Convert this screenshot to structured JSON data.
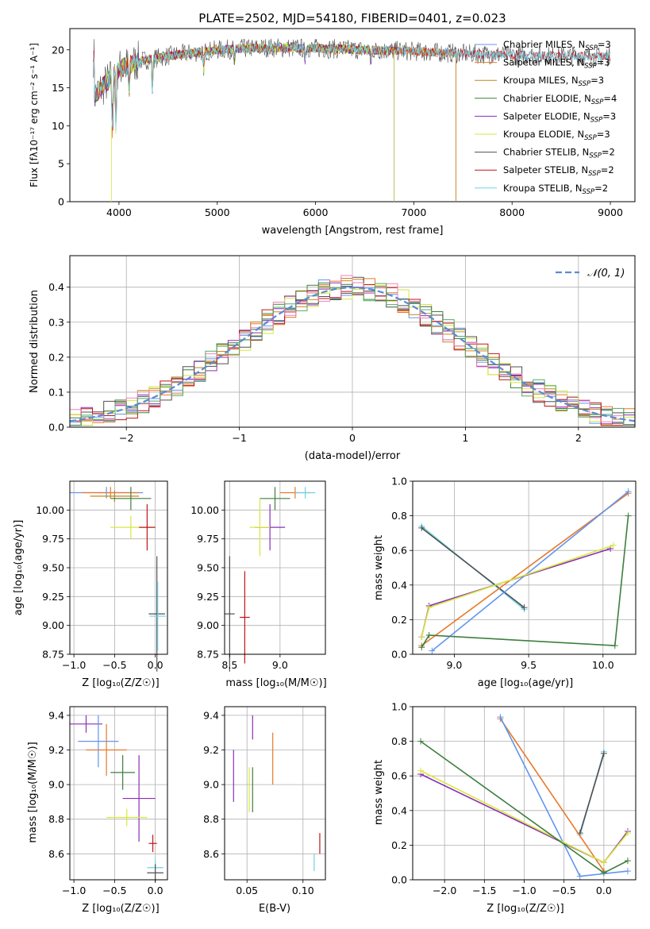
{
  "title": "PLATE=2502, MJD=54180, FIBERID=0401, z=0.023",
  "series_colors": [
    "#6495ed",
    "#e8792a",
    "#c2851f",
    "#3e7e3e",
    "#8a2fb8",
    "#d6e83c",
    "#505050",
    "#c0161a",
    "#6fd3e6"
  ],
  "hist_colors": [
    "#6495ed",
    "#e8792a",
    "#c2851f",
    "#3e7e3e",
    "#8a2fb8",
    "#d6e83c",
    "#505050",
    "#c0161a",
    "#ee82b8",
    "#55aa66"
  ],
  "spectrum": {
    "xlabel": "wavelength [Angstrom, rest frame]",
    "ylabel": "Flux [fλ10⁻¹⁷ erg cm⁻² s⁻¹ A⁻¹]",
    "xticks": [
      "4000",
      "5000",
      "6000",
      "7000",
      "8000",
      "9000"
    ],
    "yticks": [
      "0",
      "5",
      "10",
      "15",
      "20"
    ],
    "legend": [
      "Chabrier MILES, N_SSP=3",
      "Salpeter MILES, N_SSP=3",
      "Kroupa MILES, N_SSP=3",
      "Chabrier ELODIE, N_SSP=4",
      "Salpeter ELODIE, N_SSP=3",
      "Kroupa ELODIE, N_SSP=3",
      "Chabrier STELIB, N_SSP=2",
      "Salpeter STELIB, N_SSP=2",
      "Kroupa STELIB, N_SSP=2"
    ]
  },
  "histogram": {
    "xlabel": "(data-model)/error",
    "ylabel": "Normed distribution",
    "xticks": [
      "−2",
      "−1",
      "0",
      "1",
      "2"
    ],
    "yticks": [
      "0.0",
      "0.1",
      "0.2",
      "0.3",
      "0.4"
    ],
    "legend": "𝒩(0, 1)"
  },
  "panels": {
    "age_vs_Z": {
      "xlabel": "Z [log₁₀(Z/Z☉)]",
      "ylabel": "age  [log₁₀(age/yr)]",
      "xticks": [
        "−1.0",
        "−0.5",
        "0.0"
      ],
      "yticks": [
        "8.75",
        "9.00",
        "9.25",
        "9.50",
        "9.75",
        "10.00"
      ]
    },
    "age_vs_mass": {
      "xlabel": "mass [log₁₀(M/M☉)]",
      "xticks": [
        "8.5",
        "9.0"
      ],
      "yticks": [
        "8.75",
        "9.00",
        "9.25",
        "9.50",
        "9.75",
        "10.00"
      ]
    },
    "weight_vs_age": {
      "xlabel": "age  [log₁₀(age/yr)]",
      "ylabel": "mass weight",
      "xticks": [
        "9.0",
        "9.5",
        "10.0"
      ],
      "yticks": [
        "0.0",
        "0.2",
        "0.4",
        "0.6",
        "0.8",
        "1.0"
      ]
    },
    "mass_vs_Z": {
      "xlabel": "Z [log₁₀(Z/Z☉)]",
      "ylabel": "mass [log₁₀(M/M☉)]",
      "xticks": [
        "−1.0",
        "−0.5",
        "0.0"
      ],
      "yticks": [
        "8.6",
        "8.8",
        "9.0",
        "9.2",
        "9.4"
      ]
    },
    "mass_vs_ebv": {
      "xlabel": "E(B-V)",
      "xticks": [
        "0.05",
        "0.10"
      ],
      "yticks": [
        "8.6",
        "8.8",
        "9.0",
        "9.2",
        "9.4"
      ]
    },
    "weight_vs_Z": {
      "xlabel": "Z [log₁₀(Z/Z☉)]",
      "ylabel": "mass weight",
      "xticks": [
        "−2.0",
        "−1.5",
        "−1.0",
        "−0.5",
        "0.0"
      ],
      "yticks": [
        "0.0",
        "0.2",
        "0.4",
        "0.6",
        "0.8",
        "1.0"
      ]
    }
  },
  "chart_data": [
    {
      "type": "line",
      "title": "PLATE=2502, MJD=54180, FIBERID=0401, z=0.023",
      "xlabel": "wavelength [Angstrom, rest frame]",
      "ylabel": "Flux [fλ10⁻¹⁷ erg cm⁻² s⁻¹ A⁻¹]",
      "xlim": [
        3500,
        9250
      ],
      "ylim": [
        0,
        22.8
      ],
      "approx_continuum": {
        "x": [
          3750,
          3900,
          4000,
          4200,
          4500,
          5000,
          5500,
          6000,
          6500,
          7000,
          7500,
          8000,
          8500,
          9000
        ],
        "y": [
          14,
          16,
          17.5,
          18.5,
          19.2,
          20,
          20.3,
          20.2,
          20,
          19.8,
          19.5,
          19.3,
          19.2,
          19.1
        ]
      },
      "series": [
        {
          "name": "Chabrier MILES, N_SSP=3",
          "xmax": 7430
        },
        {
          "name": "Salpeter MILES, N_SSP=3",
          "xmax": 7430
        },
        {
          "name": "Kroupa MILES, N_SSP=3",
          "xmax": 7430
        },
        {
          "name": "Chabrier ELODIE, N_SSP=4",
          "xmax": 6800
        },
        {
          "name": "Salpeter ELODIE, N_SSP=3",
          "xmax": 6800
        },
        {
          "name": "Kroupa ELODIE, N_SSP=3",
          "xmax": 6800
        },
        {
          "name": "Chabrier STELIB, N_SSP=2",
          "xmax": 9000
        },
        {
          "name": "Salpeter STELIB, N_SSP=2",
          "xmax": 9000
        },
        {
          "name": "Kroupa STELIB, N_SSP=2",
          "xmax": 9000
        }
      ]
    },
    {
      "type": "bar",
      "xlabel": "(data-model)/error",
      "ylabel": "Normed distribution",
      "xlim": [
        -2.5,
        2.5
      ],
      "ylim": [
        0,
        0.49
      ],
      "bin_width": 0.1,
      "reference_curve": {
        "name": "𝒩(0, 1)",
        "mean": 0,
        "sigma": 1
      },
      "approx_note": "histograms of normalized residuals for each fit, following N(0,1)"
    },
    {
      "type": "scatter",
      "xlabel": "Z [log₁₀(Z/Z☉)]",
      "ylabel": "age  [log₁₀(age/yr)]",
      "xlim": [
        -1.05,
        0.15
      ],
      "ylim": [
        8.75,
        10.25
      ],
      "points": [
        {
          "x": -0.6,
          "y": 10.15,
          "xerr": 0.45,
          "yerr": 0.05
        },
        {
          "x": -0.55,
          "y": 10.15,
          "xerr": 0.35,
          "yerr": 0.05
        },
        {
          "x": -0.5,
          "y": 10.12,
          "xerr": 0.3,
          "yerr": 0.05
        },
        {
          "x": -0.3,
          "y": 10.1,
          "xerr": 0.25,
          "yerr": 0.1
        },
        {
          "x": -0.3,
          "y": 9.85,
          "xerr": 0.25,
          "yerr": 0.1
        },
        {
          "x": -0.1,
          "y": 9.85,
          "xerr": 0.1,
          "yerr": 0.2
        },
        {
          "x": 0.02,
          "y": 9.1,
          "xerr": 0.1,
          "yerr": 0.5
        },
        {
          "x": 0.03,
          "y": 9.08,
          "xerr": 0.1,
          "yerr": 0.3
        }
      ]
    },
    {
      "type": "scatter",
      "xlabel": "mass [log₁₀(M/M☉)]",
      "xlim": [
        8.45,
        9.45
      ],
      "ylim": [
        8.75,
        10.25
      ],
      "points": [
        {
          "x": 9.15,
          "y": 10.15,
          "xerr": 0.15,
          "yerr": 0.05
        },
        {
          "x": 9.25,
          "y": 10.15,
          "xerr": 0.1,
          "yerr": 0.05
        },
        {
          "x": 8.95,
          "y": 10.1,
          "xerr": 0.15,
          "yerr": 0.1
        },
        {
          "x": 8.9,
          "y": 9.85,
          "xerr": 0.15,
          "yerr": 0.2
        },
        {
          "x": 8.8,
          "y": 9.85,
          "xerr": 0.1,
          "yerr": 0.25
        },
        {
          "x": 8.5,
          "y": 9.1,
          "xerr": 0.05,
          "yerr": 0.5
        },
        {
          "x": 8.65,
          "y": 9.07,
          "xerr": 0.05,
          "yerr": 0.4
        }
      ]
    },
    {
      "type": "line",
      "xlabel": "age  [log₁₀(age/yr)]",
      "ylabel": "mass weight",
      "xlim": [
        8.72,
        10.22
      ],
      "ylim": [
        0,
        1
      ],
      "series": [
        {
          "x": [
            8.78,
            9.47
          ],
          "y": [
            0.74,
            0.26
          ]
        },
        {
          "x": [
            8.78,
            9.47
          ],
          "y": [
            0.73,
            0.27
          ]
        },
        {
          "x": [
            8.78,
            10.17
          ],
          "y": [
            0.05,
            0.93
          ]
        },
        {
          "x": [
            8.85,
            10.17
          ],
          "y": [
            0.02,
            0.94
          ]
        },
        {
          "x": [
            8.78,
            8.83,
            10.05
          ],
          "y": [
            0.1,
            0.28,
            0.61
          ]
        },
        {
          "x": [
            8.78,
            8.83,
            10.07
          ],
          "y": [
            0.1,
            0.27,
            0.63
          ]
        },
        {
          "x": [
            8.78,
            8.83,
            10.08,
            10.17
          ],
          "y": [
            0.04,
            0.11,
            0.05,
            0.8
          ]
        }
      ]
    },
    {
      "type": "scatter",
      "xlabel": "Z [log₁₀(Z/Z☉)]",
      "ylabel": "mass [log₁₀(M/M☉)]",
      "xlim": [
        -1.05,
        0.15
      ],
      "ylim": [
        8.45,
        9.45
      ],
      "points": [
        {
          "x": -0.85,
          "y": 9.35,
          "xerr": 0.2,
          "yerr": 0.05
        },
        {
          "x": -0.7,
          "y": 9.25,
          "xerr": 0.25,
          "yerr": 0.15
        },
        {
          "x": -0.6,
          "y": 9.2,
          "xerr": 0.25,
          "yerr": 0.15
        },
        {
          "x": -0.4,
          "y": 9.07,
          "xerr": 0.15,
          "yerr": 0.1
        },
        {
          "x": -0.2,
          "y": 8.92,
          "xerr": 0.2,
          "yerr": 0.25
        },
        {
          "x": -0.35,
          "y": 8.81,
          "xerr": 0.25,
          "yerr": 0.05
        },
        {
          "x": -0.03,
          "y": 8.66,
          "xerr": 0.05,
          "yerr": 0.05
        },
        {
          "x": 0.0,
          "y": 8.52,
          "xerr": 0.1,
          "yerr": 0.05
        },
        {
          "x": 0.0,
          "y": 8.49,
          "xerr": 0.1,
          "yerr": 0.05
        }
      ]
    },
    {
      "type": "scatter",
      "xlabel": "E(B-V)",
      "xlim": [
        0.03,
        0.12
      ],
      "ylim": [
        8.45,
        9.45
      ],
      "points": [
        {
          "x": 0.055,
          "y": 9.33,
          "yerr": 0.07
        },
        {
          "x": 0.073,
          "y": 9.15,
          "yerr": 0.15
        },
        {
          "x": 0.038,
          "y": 9.05,
          "yerr": 0.15
        },
        {
          "x": 0.055,
          "y": 8.97,
          "yerr": 0.13
        },
        {
          "x": 0.052,
          "y": 8.97,
          "yerr": 0.13
        },
        {
          "x": 0.115,
          "y": 8.66,
          "yerr": 0.06
        },
        {
          "x": 0.11,
          "y": 8.55,
          "yerr": 0.05
        }
      ]
    },
    {
      "type": "line",
      "xlabel": "Z [log₁₀(Z/Z☉)]",
      "ylabel": "mass weight",
      "xlim": [
        -2.4,
        0.4
      ],
      "ylim": [
        0,
        1
      ],
      "series": [
        {
          "x": [
            -0.3,
            0.0
          ],
          "y": [
            0.26,
            0.74
          ]
        },
        {
          "x": [
            -0.3,
            0.0
          ],
          "y": [
            0.27,
            0.73
          ]
        },
        {
          "x": [
            -1.3,
            0.0
          ],
          "y": [
            0.93,
            0.05
          ]
        },
        {
          "x": [
            -1.3,
            -0.3,
            0.3
          ],
          "y": [
            0.94,
            0.02,
            0.05
          ]
        },
        {
          "x": [
            -2.3,
            0.0,
            0.3
          ],
          "y": [
            0.61,
            0.1,
            0.28
          ]
        },
        {
          "x": [
            -2.3,
            0.0,
            0.3
          ],
          "y": [
            0.63,
            0.1,
            0.27
          ]
        },
        {
          "x": [
            -2.3,
            0.0,
            0.3
          ],
          "y": [
            0.8,
            0.04,
            0.11
          ]
        }
      ]
    }
  ]
}
